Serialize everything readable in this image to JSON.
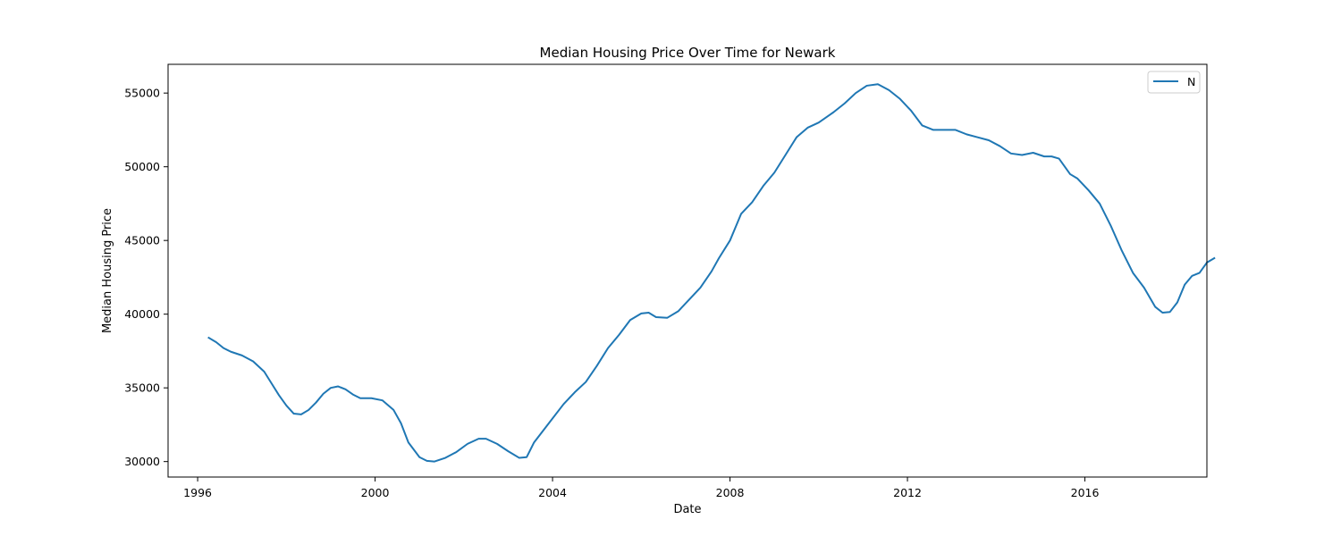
{
  "chart_data": {
    "type": "line",
    "title": "Median Housing Price Over Time for Newark",
    "xlabel": "Date",
    "ylabel": "Median Housing Price",
    "xlim": [
      "1995-05-01",
      "2018-10-01"
    ],
    "ylim": [
      28950,
      56950
    ],
    "x_ticks": [
      "1996",
      "2000",
      "2004",
      "2008",
      "2012",
      "2016"
    ],
    "y_ticks": [
      "30000",
      "35000",
      "40000",
      "45000",
      "50000",
      "55000"
    ],
    "legend_position": "top-right",
    "grid": false,
    "series": [
      {
        "name": "N",
        "color": "#1f77b4",
        "points": [
          [
            "1996-04",
            38400
          ],
          [
            "1996-06",
            38100
          ],
          [
            "1996-08",
            37700
          ],
          [
            "1996-10",
            37450
          ],
          [
            "1997-01",
            37200
          ],
          [
            "1997-04",
            36800
          ],
          [
            "1997-07",
            36100
          ],
          [
            "1997-09",
            35300
          ],
          [
            "1997-11",
            34500
          ],
          [
            "1998-01",
            33800
          ],
          [
            "1998-03",
            33250
          ],
          [
            "1998-05",
            33200
          ],
          [
            "1998-07",
            33500
          ],
          [
            "1998-09",
            34000
          ],
          [
            "1998-11",
            34600
          ],
          [
            "1999-01",
            35000
          ],
          [
            "1999-03",
            35100
          ],
          [
            "1999-05",
            34900
          ],
          [
            "1999-07",
            34550
          ],
          [
            "1999-09",
            34300
          ],
          [
            "1999-12",
            34300
          ],
          [
            "2000-03",
            34150
          ],
          [
            "2000-06",
            33500
          ],
          [
            "2000-08",
            32600
          ],
          [
            "2000-10",
            31300
          ],
          [
            "2001-01",
            30300
          ],
          [
            "2001-03",
            30050
          ],
          [
            "2001-05",
            30000
          ],
          [
            "2001-08",
            30250
          ],
          [
            "2001-11",
            30650
          ],
          [
            "2002-02",
            31200
          ],
          [
            "2002-05",
            31550
          ],
          [
            "2002-07",
            31550
          ],
          [
            "2002-10",
            31200
          ],
          [
            "2003-01",
            30700
          ],
          [
            "2003-04",
            30250
          ],
          [
            "2003-06",
            30300
          ],
          [
            "2003-08",
            31300
          ],
          [
            "2003-12",
            32600
          ],
          [
            "2004-04",
            33900
          ],
          [
            "2004-07",
            34700
          ],
          [
            "2004-10",
            35400
          ],
          [
            "2005-01",
            36500
          ],
          [
            "2005-04",
            37700
          ],
          [
            "2005-07",
            38600
          ],
          [
            "2005-10",
            39600
          ],
          [
            "2006-01",
            40050
          ],
          [
            "2006-03",
            40100
          ],
          [
            "2006-05",
            39800
          ],
          [
            "2006-08",
            39750
          ],
          [
            "2006-11",
            40200
          ],
          [
            "2007-02",
            41000
          ],
          [
            "2007-05",
            41800
          ],
          [
            "2007-08",
            42900
          ],
          [
            "2007-10",
            43800
          ],
          [
            "2008-01",
            45000
          ],
          [
            "2008-04",
            46800
          ],
          [
            "2008-07",
            47600
          ],
          [
            "2008-10",
            48700
          ],
          [
            "2009-01",
            49600
          ],
          [
            "2009-04",
            50800
          ],
          [
            "2009-07",
            52000
          ],
          [
            "2009-10",
            52650
          ],
          [
            "2010-01",
            53000
          ],
          [
            "2010-05",
            53700
          ],
          [
            "2010-08",
            54300
          ],
          [
            "2010-11",
            55000
          ],
          [
            "2011-02",
            55500
          ],
          [
            "2011-05",
            55600
          ],
          [
            "2011-08",
            55200
          ],
          [
            "2011-11",
            54600
          ],
          [
            "2012-02",
            53800
          ],
          [
            "2012-05",
            52800
          ],
          [
            "2012-08",
            52500
          ],
          [
            "2012-11",
            52500
          ],
          [
            "2013-02",
            52500
          ],
          [
            "2013-05",
            52200
          ],
          [
            "2013-08",
            52000
          ],
          [
            "2013-11",
            51800
          ],
          [
            "2014-02",
            51400
          ],
          [
            "2014-05",
            50900
          ],
          [
            "2014-08",
            50800
          ],
          [
            "2014-11",
            50950
          ],
          [
            "2015-02",
            50700
          ],
          [
            "2015-04",
            50700
          ],
          [
            "2015-06",
            50550
          ],
          [
            "2015-09",
            49500
          ],
          [
            "2015-11",
            49200
          ],
          [
            "2016-02",
            48400
          ],
          [
            "2016-05",
            47500
          ],
          [
            "2016-08",
            46000
          ],
          [
            "2016-11",
            44300
          ],
          [
            "2017-02",
            42800
          ],
          [
            "2017-05",
            41800
          ],
          [
            "2017-08",
            40500
          ],
          [
            "2017-10",
            40100
          ],
          [
            "2017-12",
            40150
          ],
          [
            "2018-02",
            40800
          ],
          [
            "2018-04",
            42000
          ],
          [
            "2018-06",
            42600
          ],
          [
            "2018-08",
            42800
          ],
          [
            "2018-10",
            43500
          ],
          [
            "2018-12",
            43800
          ]
        ]
      }
    ]
  }
}
